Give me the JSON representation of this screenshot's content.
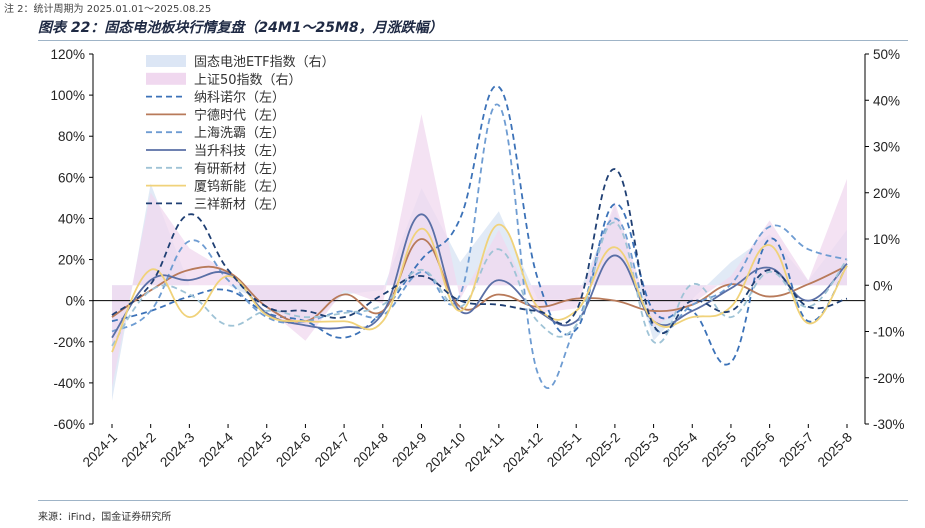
{
  "note": "注 2：统计周期为 2025.01.01～2025.08.25",
  "title": "图表 22：固态电池板块行情复盘（24M1～25M8，月涨跌幅）",
  "source": "来源：iFind，国金证券研究所",
  "chart_data": {
    "type": "line",
    "categories": [
      "2024-1",
      "2024-2",
      "2024-3",
      "2024-4",
      "2024-5",
      "2024-6",
      "2024-7",
      "2024-8",
      "2024-9",
      "2024-10",
      "2024-11",
      "2024-12",
      "2025-1",
      "2025-2",
      "2025-3",
      "2025-4",
      "2025-5",
      "2025-6",
      "2025-7",
      "2025-8"
    ],
    "y_left": {
      "ylim": [
        -60,
        120
      ],
      "ticks": [
        -60,
        -40,
        -20,
        0,
        20,
        40,
        60,
        80,
        100,
        120
      ],
      "tick_labels": [
        "-60%",
        "-40%",
        "-20%",
        "0%",
        "20%",
        "40%",
        "60%",
        "80%",
        "100%",
        "120%"
      ]
    },
    "y_right": {
      "ylim": [
        -30,
        50
      ],
      "ticks": [
        -30,
        -20,
        -10,
        0,
        10,
        20,
        30,
        40,
        50
      ],
      "tick_labels": [
        "-30%",
        "-20%",
        "-10%",
        "0%",
        "10%",
        "20%",
        "30%",
        "40%",
        "50%"
      ]
    },
    "grid": false,
    "legend_position": "top-left",
    "area_series": [
      {
        "name": "固态电池ETF指数（右）",
        "axis": "right",
        "color": "#dce6f5",
        "values": [
          -25,
          22,
          0,
          0,
          -4,
          -9,
          -2,
          -1,
          21,
          5,
          16,
          -3,
          -3,
          17,
          -12,
          -3,
          5,
          11,
          1,
          12
        ]
      },
      {
        "name": "上证50指数（右）",
        "axis": "right",
        "color": "#f0d8ef",
        "values": [
          -22,
          20,
          8,
          3,
          -5,
          -12,
          -1,
          -4,
          37,
          -3,
          12,
          -6,
          -5,
          18,
          -9,
          -4,
          2,
          14,
          1,
          23
        ]
      }
    ],
    "line_series": [
      {
        "name": "纳科诺尔（左）",
        "axis": "left",
        "color": "#3c72b8",
        "dash": "6,4",
        "values": [
          -10,
          -5,
          2,
          5,
          -6,
          -10,
          -18,
          -5,
          20,
          40,
          104,
          11,
          -14,
          47,
          -5,
          -5,
          -30,
          30,
          -10,
          17
        ]
      },
      {
        "name": "宁德时代（左）",
        "axis": "left",
        "color": "#b87a5a",
        "dash": "",
        "values": [
          -8,
          5,
          15,
          14,
          -3,
          -10,
          3,
          -5,
          30,
          -3,
          3,
          -3,
          1,
          0,
          -5,
          -2,
          8,
          2,
          8,
          17
        ]
      },
      {
        "name": "上海洗霸（左）",
        "axis": "left",
        "color": "#6e9cd2",
        "dash": "6,4",
        "values": [
          -15,
          -5,
          29,
          10,
          -8,
          -10,
          -5,
          -7,
          14,
          3,
          95,
          -35,
          -12,
          40,
          -13,
          -2,
          8,
          36,
          25,
          20
        ]
      },
      {
        "name": "当升科技（左）",
        "axis": "left",
        "color": "#5a6fa6",
        "dash": "",
        "values": [
          -18,
          10,
          10,
          13,
          -6,
          -12,
          -13,
          -6,
          42,
          -5,
          10,
          -5,
          -10,
          22,
          -10,
          -5,
          6,
          16,
          0,
          18
        ]
      },
      {
        "name": "有研新材（左）",
        "axis": "left",
        "color": "#9fc3d6",
        "dash": "6,4",
        "values": [
          -22,
          5,
          3,
          -12,
          -5,
          -8,
          -6,
          -2,
          15,
          -3,
          25,
          -10,
          -12,
          38,
          -20,
          8,
          -8,
          14,
          -3,
          20
        ]
      },
      {
        "name": "厦钨新能（左）",
        "axis": "left",
        "color": "#f0d27a",
        "dash": "",
        "values": [
          -25,
          15,
          -8,
          12,
          -7,
          -10,
          -10,
          -10,
          35,
          -5,
          37,
          -3,
          -5,
          26,
          -10,
          -8,
          -3,
          27,
          -11,
          17
        ]
      },
      {
        "name": "三祥新材（左）",
        "axis": "left",
        "color": "#1f3f73",
        "dash": "6,4",
        "values": [
          -7,
          8,
          42,
          15,
          -3,
          -5,
          -8,
          3,
          12,
          0,
          -2,
          -5,
          -5,
          64,
          -12,
          0,
          -5,
          15,
          -3,
          1
        ]
      }
    ]
  }
}
